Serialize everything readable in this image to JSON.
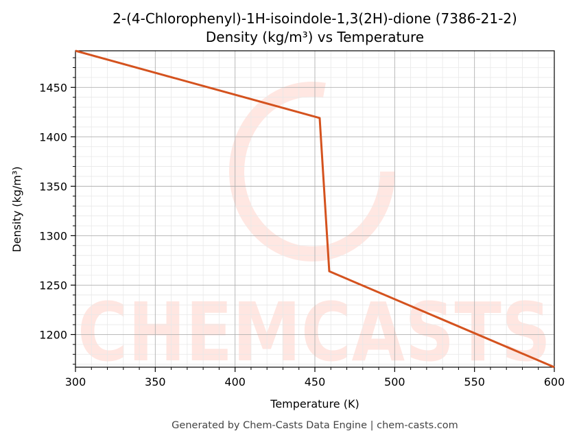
{
  "chart_data": {
    "type": "line",
    "title": "2-(4-Chlorophenyl)-1H-isoindole-1,3(2H)-dione (7386-21-2)",
    "subtitle": "Density (kg/m³) vs Temperature",
    "xlabel": "Temperature (K)",
    "ylabel": "Density (kg/m³)",
    "xlim": [
      300,
      600
    ],
    "ylim": [
      1167,
      1487
    ],
    "x_ticks": [
      300,
      350,
      400,
      450,
      500,
      550,
      600
    ],
    "y_ticks": [
      1200,
      1250,
      1300,
      1350,
      1400,
      1450
    ],
    "grid": true,
    "series": [
      {
        "color": "#d4521e",
        "points": [
          [
            300,
            1487
          ],
          [
            453,
            1419
          ],
          [
            459,
            1264
          ],
          [
            600,
            1167
          ]
        ]
      }
    ]
  },
  "watermark": "CHEMCASTS",
  "footer": "Generated by Chem-Casts Data Engine | chem-casts.com"
}
